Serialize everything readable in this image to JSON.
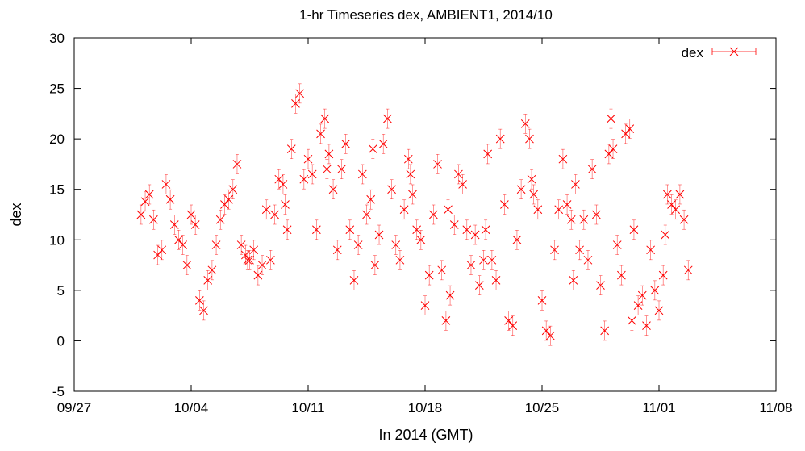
{
  "chart_data": {
    "type": "scatter",
    "title": "1-hr Timeseries dex, AMBIENT1, 2014/10",
    "xlabel": "In 2014 (GMT)",
    "ylabel": "dex",
    "x_tick_labels": [
      "09/27",
      "10/04",
      "10/11",
      "10/18",
      "10/25",
      "11/01",
      "11/08"
    ],
    "xlim": [
      "2014-09-27",
      "2014-11-08"
    ],
    "ylim": [
      -5,
      30
    ],
    "y_ticks": [
      -5,
      0,
      5,
      10,
      15,
      20,
      25,
      30
    ],
    "grid": false,
    "legend": {
      "position": "top-right",
      "entries": [
        "dex"
      ]
    },
    "colors": {
      "series": "#ff0000"
    },
    "marker": "x-with-errorbars",
    "series": [
      {
        "name": "dex",
        "points": [
          [
            "2014-10-01T00:00",
            12.5
          ],
          [
            "2014-10-01T06:00",
            13.8
          ],
          [
            "2014-10-01T12:00",
            14.5
          ],
          [
            "2014-10-01T18:00",
            12.0
          ],
          [
            "2014-10-02T00:00",
            8.5
          ],
          [
            "2014-10-02T06:00",
            9.0
          ],
          [
            "2014-10-02T12:00",
            15.5
          ],
          [
            "2014-10-02T18:00",
            14.0
          ],
          [
            "2014-10-03T00:00",
            11.5
          ],
          [
            "2014-10-03T06:00",
            10.0
          ],
          [
            "2014-10-03T12:00",
            9.5
          ],
          [
            "2014-10-03T18:00",
            7.5
          ],
          [
            "2014-10-04T00:00",
            12.5
          ],
          [
            "2014-10-04T06:00",
            11.5
          ],
          [
            "2014-10-04T12:00",
            4.0
          ],
          [
            "2014-10-04T18:00",
            3.0
          ],
          [
            "2014-10-05T00:00",
            6.0
          ],
          [
            "2014-10-05T06:00",
            7.0
          ],
          [
            "2014-10-05T12:00",
            9.5
          ],
          [
            "2014-10-05T18:00",
            12.0
          ],
          [
            "2014-10-06T00:00",
            13.5
          ],
          [
            "2014-10-06T06:00",
            14.0
          ],
          [
            "2014-10-06T12:00",
            15.0
          ],
          [
            "2014-10-06T18:00",
            17.5
          ],
          [
            "2014-10-07T00:00",
            9.5
          ],
          [
            "2014-10-07T06:00",
            8.5
          ],
          [
            "2014-10-07T12:00",
            8.0
          ],
          [
            "2014-10-07T18:00",
            9.0
          ],
          [
            "2014-10-08T00:00",
            6.5
          ],
          [
            "2014-10-08T06:00",
            7.5
          ],
          [
            "2014-10-08T12:00",
            13.0
          ],
          [
            "2014-10-08T18:00",
            8.0
          ],
          [
            "2014-10-09T00:00",
            12.5
          ],
          [
            "2014-10-09T06:00",
            16.0
          ],
          [
            "2014-10-09T12:00",
            15.5
          ],
          [
            "2014-10-09T18:00",
            11.0
          ],
          [
            "2014-10-10T00:00",
            19.0
          ],
          [
            "2014-10-10T06:00",
            23.5
          ],
          [
            "2014-10-10T12:00",
            24.5
          ],
          [
            "2014-10-10T18:00",
            16.0
          ],
          [
            "2014-10-11T00:00",
            18.0
          ],
          [
            "2014-10-11T06:00",
            16.5
          ],
          [
            "2014-10-11T12:00",
            11.0
          ],
          [
            "2014-10-11T18:00",
            20.5
          ],
          [
            "2014-10-12T00:00",
            22.0
          ],
          [
            "2014-10-12T06:00",
            18.5
          ],
          [
            "2014-10-12T12:00",
            15.0
          ],
          [
            "2014-10-12T18:00",
            9.0
          ],
          [
            "2014-10-13T00:00",
            17.0
          ],
          [
            "2014-10-13T06:00",
            19.5
          ],
          [
            "2014-10-13T12:00",
            11.0
          ],
          [
            "2014-10-13T18:00",
            6.0
          ],
          [
            "2014-10-14T00:00",
            9.5
          ],
          [
            "2014-10-14T06:00",
            16.5
          ],
          [
            "2014-10-14T12:00",
            12.5
          ],
          [
            "2014-10-14T18:00",
            14.0
          ],
          [
            "2014-10-15T00:00",
            7.5
          ],
          [
            "2014-10-15T06:00",
            10.5
          ],
          [
            "2014-10-15T12:00",
            19.5
          ],
          [
            "2014-10-15T18:00",
            22.0
          ],
          [
            "2014-10-16T00:00",
            15.0
          ],
          [
            "2014-10-16T06:00",
            9.5
          ],
          [
            "2014-10-16T12:00",
            8.0
          ],
          [
            "2014-10-16T18:00",
            13.0
          ],
          [
            "2014-10-17T00:00",
            18.0
          ],
          [
            "2014-10-17T06:00",
            14.5
          ],
          [
            "2014-10-17T12:00",
            11.0
          ],
          [
            "2014-10-17T18:00",
            10.0
          ],
          [
            "2014-10-18T00:00",
            3.5
          ],
          [
            "2014-10-18T06:00",
            6.5
          ],
          [
            "2014-10-18T12:00",
            12.5
          ],
          [
            "2014-10-18T18:00",
            17.5
          ],
          [
            "2014-10-19T00:00",
            7.0
          ],
          [
            "2014-10-19T06:00",
            2.0
          ],
          [
            "2014-10-19T12:00",
            4.5
          ],
          [
            "2014-10-19T18:00",
            11.5
          ],
          [
            "2014-10-20T00:00",
            16.5
          ],
          [
            "2014-10-20T06:00",
            15.5
          ],
          [
            "2014-10-20T12:00",
            11.0
          ],
          [
            "2014-10-20T18:00",
            7.5
          ],
          [
            "2014-10-21T00:00",
            10.5
          ],
          [
            "2014-10-21T06:00",
            5.5
          ],
          [
            "2014-10-21T12:00",
            8.0
          ],
          [
            "2014-10-21T18:00",
            18.5
          ],
          [
            "2014-10-22T00:00",
            8.0
          ],
          [
            "2014-10-22T06:00",
            6.0
          ],
          [
            "2014-10-22T12:00",
            20.0
          ],
          [
            "2014-10-22T18:00",
            13.5
          ],
          [
            "2014-10-23T00:00",
            2.0
          ],
          [
            "2014-10-23T06:00",
            1.5
          ],
          [
            "2014-10-23T12:00",
            10.0
          ],
          [
            "2014-10-23T18:00",
            15.0
          ],
          [
            "2014-10-24T00:00",
            21.5
          ],
          [
            "2014-10-24T06:00",
            20.0
          ],
          [
            "2014-10-24T12:00",
            14.5
          ],
          [
            "2014-10-24T18:00",
            13.0
          ],
          [
            "2014-10-25T00:00",
            4.0
          ],
          [
            "2014-10-25T06:00",
            1.0
          ],
          [
            "2014-10-25T12:00",
            0.5
          ],
          [
            "2014-10-25T18:00",
            9.0
          ],
          [
            "2014-10-26T00:00",
            13.0
          ],
          [
            "2014-10-26T06:00",
            18.0
          ],
          [
            "2014-10-26T12:00",
            13.5
          ],
          [
            "2014-10-26T18:00",
            12.0
          ],
          [
            "2014-10-27T00:00",
            15.5
          ],
          [
            "2014-10-27T06:00",
            9.0
          ],
          [
            "2014-10-27T12:00",
            12.0
          ],
          [
            "2014-10-27T18:00",
            8.0
          ],
          [
            "2014-10-28T00:00",
            17.0
          ],
          [
            "2014-10-28T06:00",
            12.5
          ],
          [
            "2014-10-28T12:00",
            5.5
          ],
          [
            "2014-10-28T18:00",
            1.0
          ],
          [
            "2014-10-29T00:00",
            18.5
          ],
          [
            "2014-10-29T06:00",
            19.0
          ],
          [
            "2014-10-29T12:00",
            9.5
          ],
          [
            "2014-10-29T18:00",
            6.5
          ],
          [
            "2014-10-30T00:00",
            20.5
          ],
          [
            "2014-10-30T06:00",
            21.0
          ],
          [
            "2014-10-30T12:00",
            11.0
          ],
          [
            "2014-10-30T18:00",
            3.5
          ],
          [
            "2014-10-31T00:00",
            4.5
          ],
          [
            "2014-10-31T06:00",
            1.5
          ],
          [
            "2014-10-31T12:00",
            9.0
          ],
          [
            "2014-10-31T18:00",
            5.0
          ],
          [
            "2014-11-01T00:00",
            3.0
          ],
          [
            "2014-11-01T06:00",
            6.5
          ],
          [
            "2014-11-01T12:00",
            14.5
          ],
          [
            "2014-11-01T18:00",
            13.5
          ],
          [
            "2014-11-02T00:00",
            13.0
          ],
          [
            "2014-11-02T06:00",
            14.5
          ],
          [
            "2014-11-02T12:00",
            12.0
          ],
          [
            "2014-11-02T18:00",
            7.0
          ],
          [
            "2014-10-07T09:00",
            8.0
          ],
          [
            "2014-10-09T15:00",
            13.5
          ],
          [
            "2014-10-12T03:00",
            17.0
          ],
          [
            "2014-10-14T21:00",
            19.0
          ],
          [
            "2014-10-17T03:00",
            16.5
          ],
          [
            "2014-10-19T09:00",
            13.0
          ],
          [
            "2014-10-21T15:00",
            11.0
          ],
          [
            "2014-10-24T09:00",
            16.0
          ],
          [
            "2014-10-26T21:00",
            6.0
          ],
          [
            "2014-10-29T03:00",
            22.0
          ],
          [
            "2014-10-30T09:00",
            2.0
          ],
          [
            "2014-11-01T09:00",
            10.5
          ]
        ]
      }
    ]
  }
}
